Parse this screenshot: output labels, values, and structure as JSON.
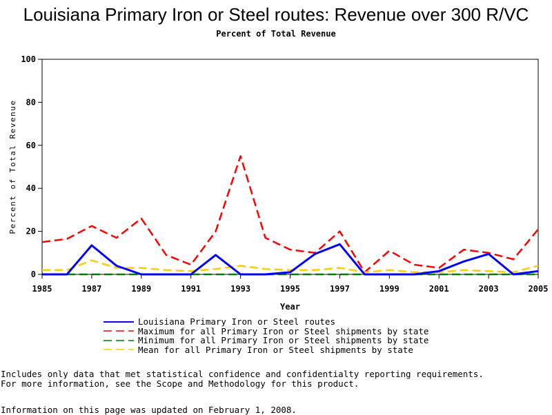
{
  "chart_data": {
    "type": "line",
    "title": "Louisiana Primary Iron or Steel routes: Revenue over 300 R/VC",
    "subtitle": "Percent of Total Revenue",
    "xlabel": "Year",
    "ylabel": "Percent of Total Revenue",
    "xlim": [
      1985,
      2005
    ],
    "ylim": [
      0,
      100
    ],
    "x_ticks": [
      "1985",
      "1987",
      "1989",
      "1991",
      "1993",
      "1995",
      "1997",
      "1999",
      "2001",
      "2003",
      "2005"
    ],
    "y_ticks": [
      "0",
      "20",
      "40",
      "60",
      "80",
      "100"
    ],
    "x": [
      1985,
      1986,
      1987,
      1988,
      1989,
      1990,
      1991,
      1992,
      1993,
      1994,
      1995,
      1996,
      1997,
      1998,
      1999,
      2000,
      2001,
      2002,
      2003,
      2004,
      2005
    ],
    "series": [
      {
        "name": "Louisiana Primary Iron or Steel routes",
        "color": "#0000ff",
        "style": "solid",
        "values": [
          0,
          0,
          13.5,
          4,
          0,
          0,
          0,
          9,
          0,
          0,
          1,
          9.5,
          14,
          0,
          0,
          0,
          1.5,
          6,
          9.5,
          0,
          1.5
        ]
      },
      {
        "name": "Maximum for all Primary Iron or Steel shipments by state",
        "color": "#ff0000",
        "style": "dashed",
        "values": [
          15,
          16.5,
          22.5,
          17,
          26,
          9,
          4.5,
          20,
          55,
          17,
          11.5,
          10,
          20,
          1,
          11,
          4.5,
          3,
          11.5,
          10,
          7,
          21
        ]
      },
      {
        "name": "Minimum for all Primary Iron or Steel shipments by state",
        "color": "#007a00",
        "style": "dashed",
        "values": [
          0,
          0,
          0,
          0,
          0,
          0,
          0,
          0,
          0,
          0,
          0,
          0,
          0,
          0,
          0,
          0,
          0,
          0,
          0,
          0,
          0
        ]
      },
      {
        "name": "Mean for all Primary Iron or Steel shipments by state",
        "color": "#ffcc00",
        "style": "dashed",
        "values": [
          2,
          2,
          6.5,
          3,
          3,
          2,
          1.5,
          2.5,
          4,
          2.5,
          2,
          2,
          3,
          1,
          2,
          1,
          1,
          2,
          1.5,
          1,
          4
        ]
      }
    ],
    "grid": false,
    "legend_position": "bottom"
  },
  "notes": {
    "line1": "Includes only data that met statistical confidence and confidentialty reporting requirements.",
    "line2": "For more information, see the Scope and Methodology for this product.",
    "updated": "Information on this page was updated on February 1, 2008."
  }
}
